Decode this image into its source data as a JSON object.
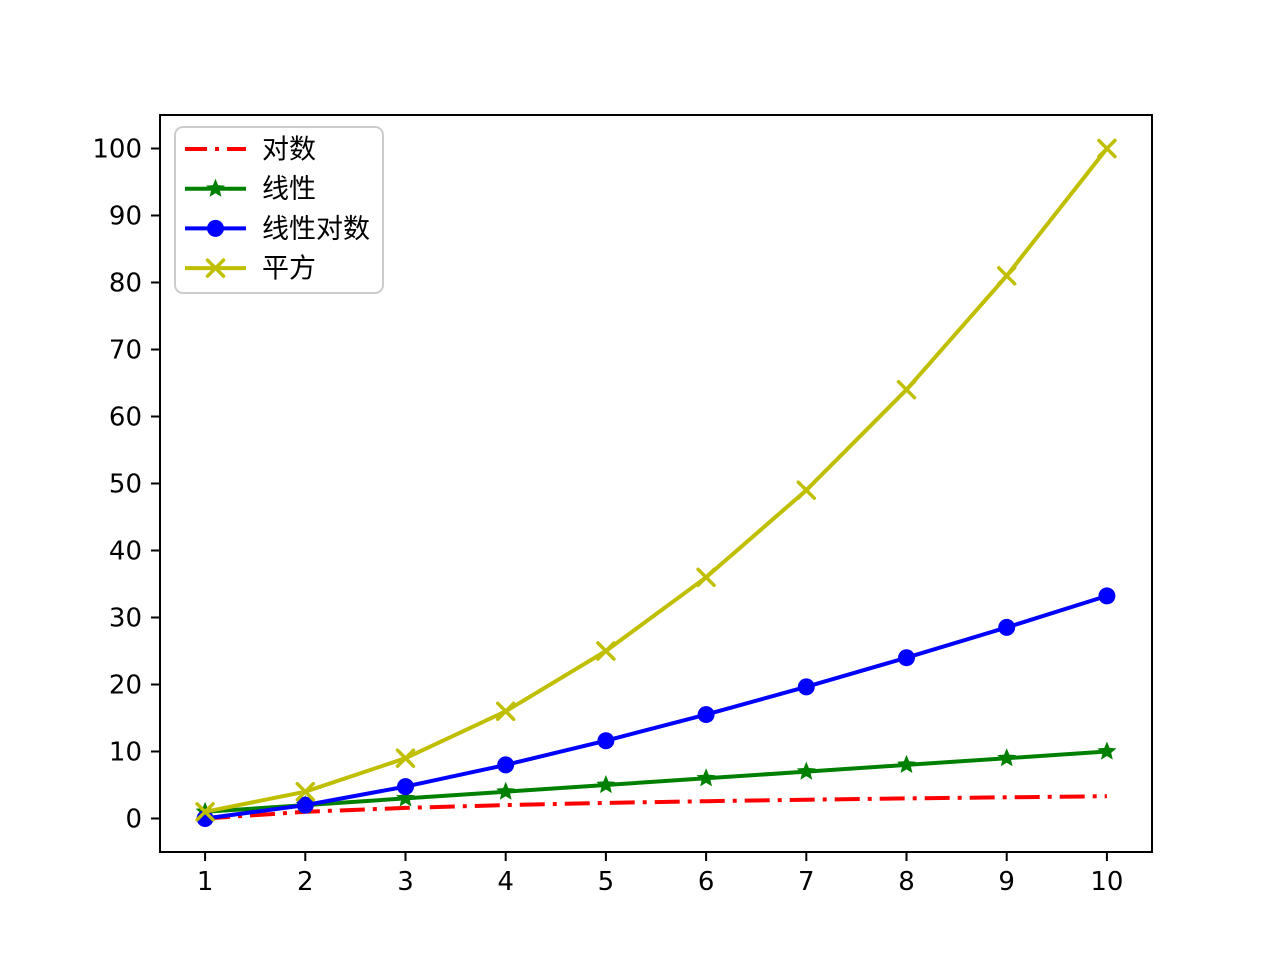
{
  "figure": {
    "background": "#ffffff",
    "frame_color": "#000000",
    "tick_color": "#000000"
  },
  "chart_data": {
    "type": "line",
    "title": "",
    "xlabel": "",
    "ylabel": "",
    "x": [
      1,
      2,
      3,
      4,
      5,
      6,
      7,
      8,
      9,
      10
    ],
    "series": [
      {
        "name": "对数",
        "values": [
          0,
          1,
          1.585,
          2,
          2.322,
          2.585,
          2.807,
          3,
          3.17,
          3.322
        ],
        "color": "#ff0000",
        "linestyle": "dashdot",
        "marker": "none"
      },
      {
        "name": "线性",
        "values": [
          1,
          2,
          3,
          4,
          5,
          6,
          7,
          8,
          9,
          10
        ],
        "color": "#008000",
        "linestyle": "solid",
        "marker": "star"
      },
      {
        "name": "线性对数",
        "values": [
          0,
          2,
          4.755,
          8,
          11.61,
          15.51,
          19.651,
          24,
          28.529,
          33.219
        ],
        "color": "#0000ff",
        "linestyle": "solid",
        "marker": "circle"
      },
      {
        "name": "平方",
        "values": [
          1,
          4,
          9,
          16,
          25,
          36,
          49,
          64,
          81,
          100
        ],
        "color": "#bfbf00",
        "linestyle": "solid",
        "marker": "x"
      }
    ],
    "xticks": [
      1,
      2,
      3,
      4,
      5,
      6,
      7,
      8,
      9,
      10
    ],
    "yticks": [
      0,
      10,
      20,
      30,
      40,
      50,
      60,
      70,
      80,
      90,
      100
    ],
    "xlim": [
      0.55,
      10.45
    ],
    "ylim": [
      -5,
      105
    ],
    "grid": false,
    "legend": {
      "position": "upper-left",
      "border_color": "#cccccc",
      "background": "#ffffff",
      "items": [
        "对数",
        "线性",
        "线性对数",
        "平方"
      ]
    }
  }
}
